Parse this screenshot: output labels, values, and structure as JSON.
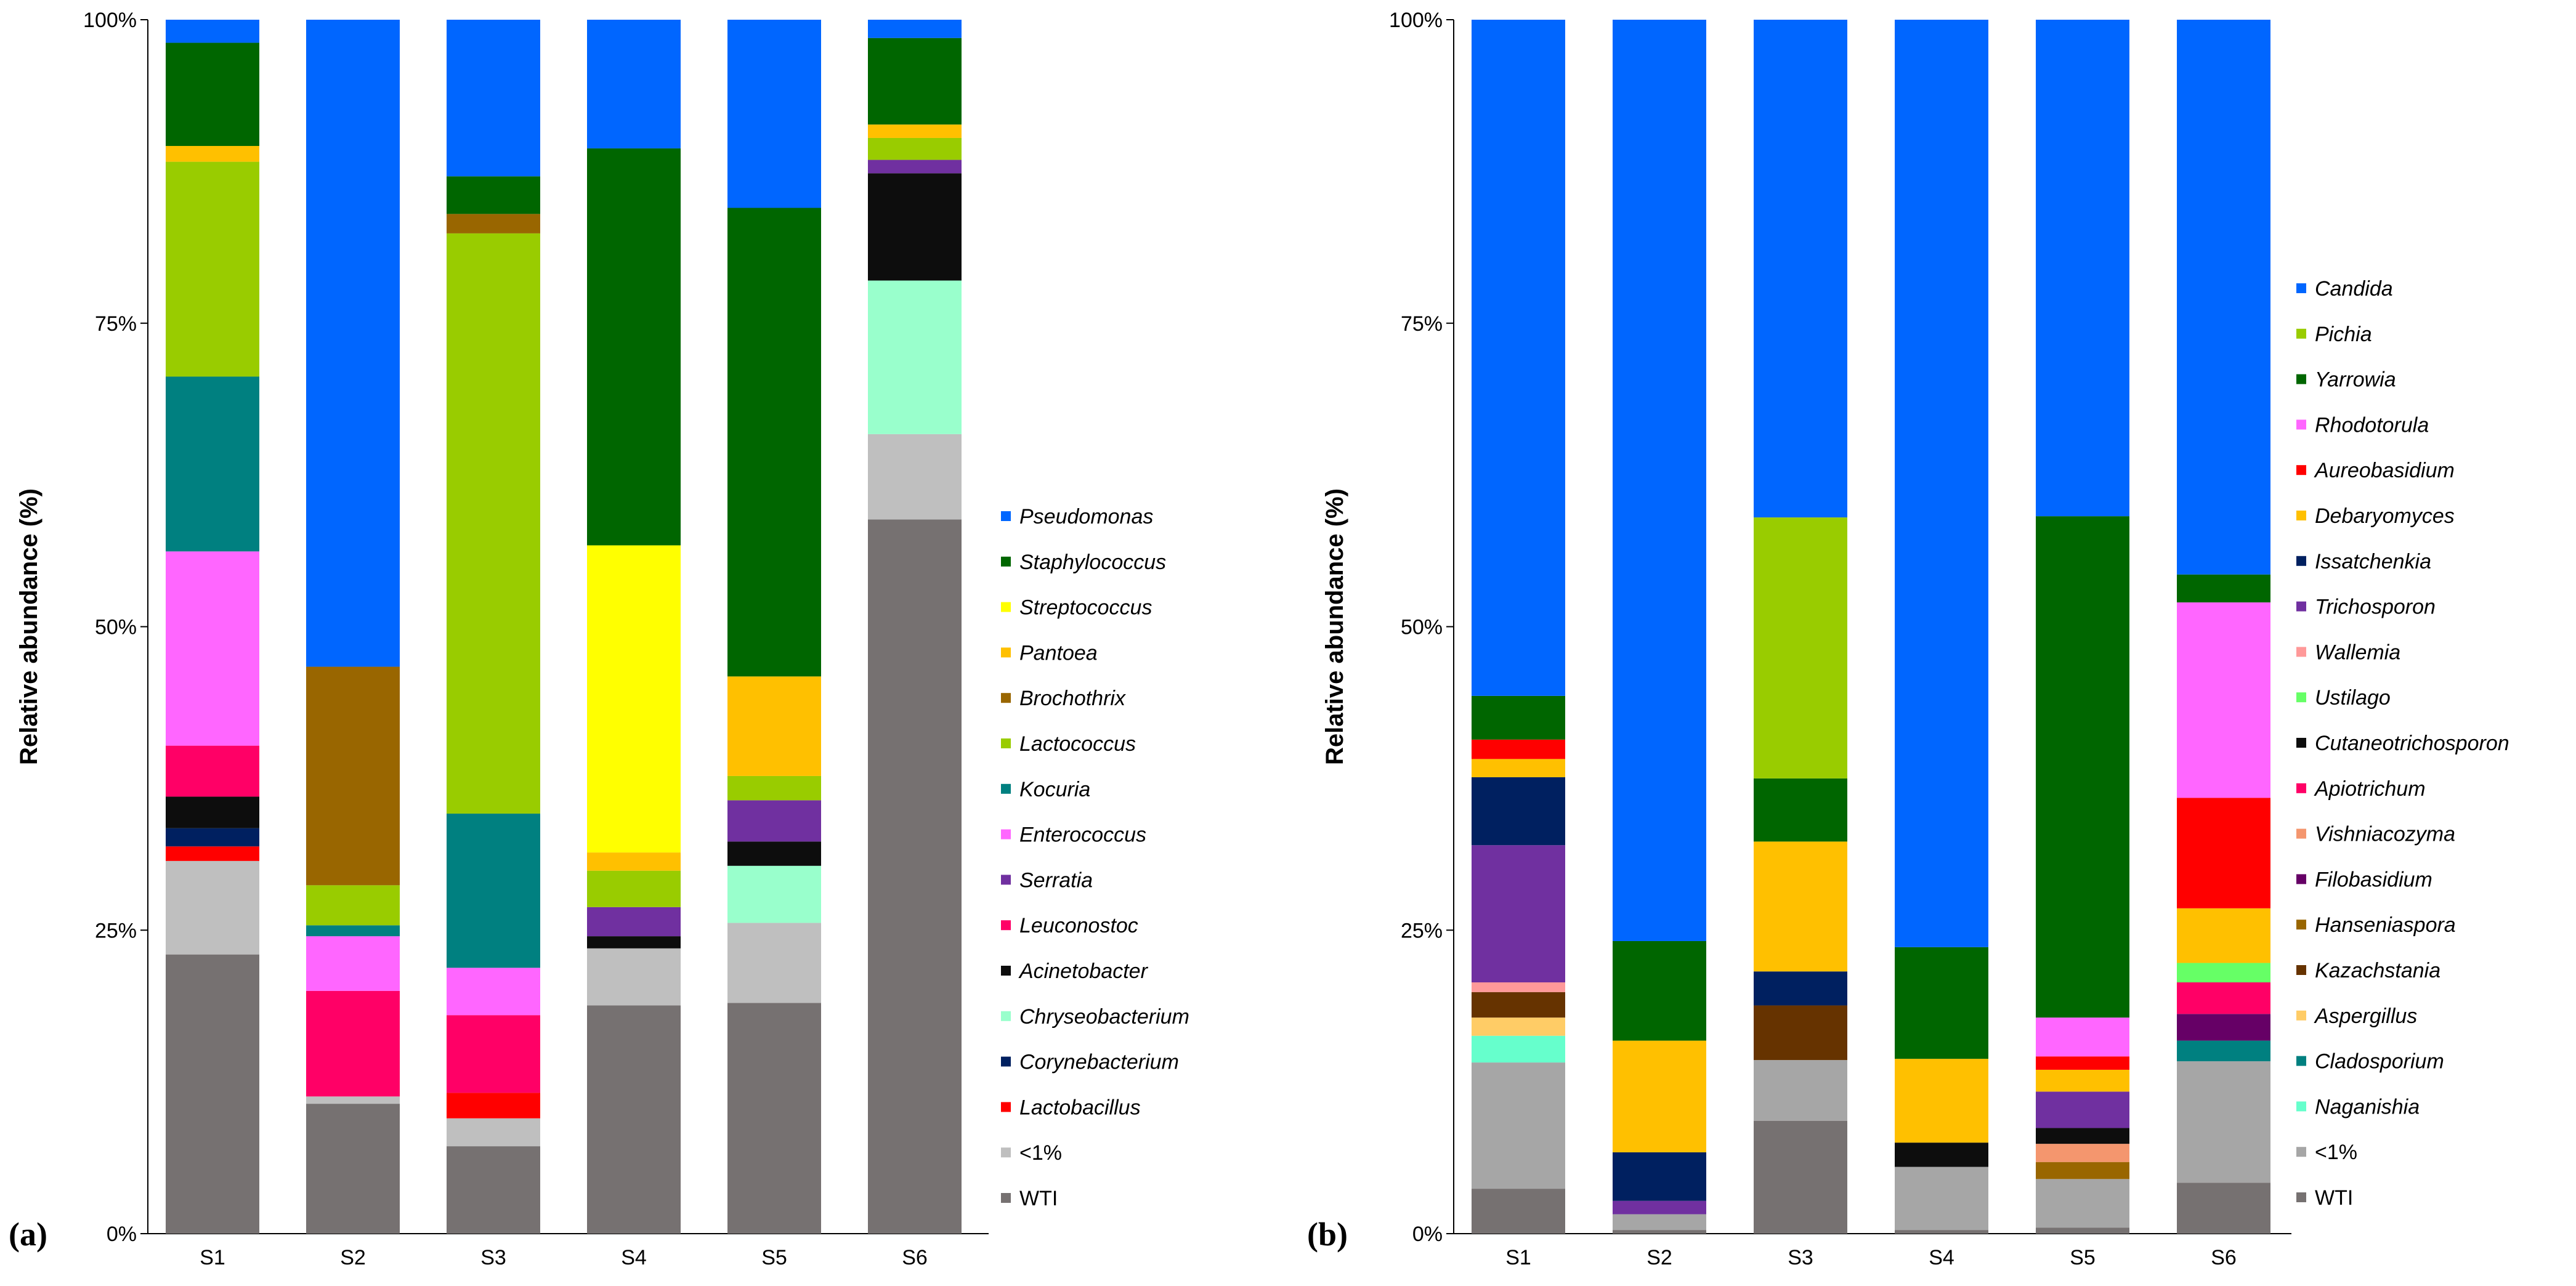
{
  "chart_data": [
    {
      "type": "bar",
      "stacked": true,
      "normalized": true,
      "panel_label": "(a)",
      "ylabel": "Relative abundance (%)",
      "ylim": [
        0,
        100
      ],
      "yticks": [
        0,
        25,
        50,
        75,
        100
      ],
      "ytick_labels": [
        "0%",
        "25%",
        "50%",
        "75%",
        "100%"
      ],
      "legend_position": "right",
      "categories": [
        "S1",
        "S2",
        "S3",
        "S4",
        "S5",
        "S6"
      ],
      "series": [
        {
          "name": "WTI",
          "italic": false,
          "color": "#767171",
          "values": [
            23,
            10.7,
            7.2,
            18.8,
            19,
            58.6
          ]
        },
        {
          "name": "<1%",
          "italic": false,
          "color": "#BFBFBF",
          "values": [
            7.7,
            0.6,
            2.3,
            4.7,
            6.6,
            7
          ]
        },
        {
          "name": "Lactobacillus",
          "italic": true,
          "color": "#FF0000",
          "values": [
            1.2,
            0,
            2.1,
            0,
            0,
            0
          ]
        },
        {
          "name": "Corynebacterium",
          "italic": true,
          "color": "#002060",
          "values": [
            1.5,
            0,
            0,
            0,
            0,
            0
          ]
        },
        {
          "name": "Chryseobacterium",
          "italic": true,
          "color": "#99FFCC",
          "values": [
            0,
            0,
            0,
            0,
            4.7,
            12.6
          ]
        },
        {
          "name": "Acinetobacter",
          "italic": true,
          "color": "#0D0D0D",
          "values": [
            2.6,
            0,
            0,
            1,
            2,
            8.8
          ]
        },
        {
          "name": "Leuconostoc",
          "italic": true,
          "color": "#FF0066",
          "values": [
            4.2,
            8.7,
            6.4,
            0,
            0,
            0
          ]
        },
        {
          "name": "Serratia",
          "italic": true,
          "color": "#7030A0",
          "values": [
            0,
            0,
            0,
            2.4,
            3.4,
            1.1
          ]
        },
        {
          "name": "Enterococcus",
          "italic": true,
          "color": "#FF66FF",
          "values": [
            16,
            4.5,
            3.9,
            0,
            0,
            0
          ]
        },
        {
          "name": "Kocuria",
          "italic": true,
          "color": "#008080",
          "values": [
            14.4,
            0.9,
            12.7,
            0,
            0,
            0
          ]
        },
        {
          "name": "Lactococcus",
          "italic": true,
          "color": "#99CC00",
          "values": [
            17.7,
            3.3,
            47.8,
            3,
            2,
            1.8
          ]
        },
        {
          "name": "Brochothrix",
          "italic": true,
          "color": "#996600",
          "values": [
            0,
            18,
            1.6,
            0,
            0,
            0
          ]
        },
        {
          "name": "Pantoea",
          "italic": true,
          "color": "#FFC000",
          "values": [
            1.3,
            0,
            0,
            1.5,
            8.2,
            1.1
          ]
        },
        {
          "name": "Streptococcus",
          "italic": true,
          "color": "#FFFF00",
          "values": [
            0,
            0,
            0,
            25.3,
            0,
            0
          ]
        },
        {
          "name": "Staphylococcus",
          "italic": true,
          "color": "#006600",
          "values": [
            8.5,
            0,
            3.1,
            32.7,
            38.6,
            7.1
          ]
        },
        {
          "name": "Pseudomonas",
          "italic": true,
          "color": "#0066FF",
          "values": [
            1.9,
            53.3,
            12.9,
            10.6,
            15.5,
            1.5
          ]
        }
      ]
    },
    {
      "type": "bar",
      "stacked": true,
      "normalized": true,
      "panel_label": "(b)",
      "ylabel": "Relative abundance (%)",
      "ylim": [
        0,
        100
      ],
      "yticks": [
        0,
        25,
        50,
        75,
        100
      ],
      "ytick_labels": [
        "0%",
        "25%",
        "50%",
        "75%",
        "100%"
      ],
      "legend_position": "right",
      "categories": [
        "S1",
        "S2",
        "S3",
        "S4",
        "S5",
        "S6"
      ],
      "series": [
        {
          "name": "WTI",
          "italic": false,
          "color": "#767171",
          "values": [
            3.7,
            0.3,
            9.3,
            0.3,
            0.5,
            4.2
          ]
        },
        {
          "name": "<1%",
          "italic": false,
          "color": "#A6A6A6",
          "values": [
            10.4,
            1.3,
            5,
            5.2,
            4,
            10
          ]
        },
        {
          "name": "Naganishia",
          "italic": true,
          "color": "#66FFCC",
          "values": [
            2.2,
            0,
            0,
            0,
            0,
            0
          ]
        },
        {
          "name": "Cladosporium",
          "italic": true,
          "color": "#008080",
          "values": [
            0,
            0,
            0,
            0,
            0,
            1.7
          ]
        },
        {
          "name": "Aspergillus",
          "italic": true,
          "color": "#FFCC66",
          "values": [
            1.5,
            0,
            0,
            0,
            0,
            0
          ]
        },
        {
          "name": "Kazachstania",
          "italic": true,
          "color": "#663300",
          "values": [
            2.1,
            0,
            4.5,
            0,
            0,
            0
          ]
        },
        {
          "name": "Hanseniaspora",
          "italic": true,
          "color": "#996600",
          "values": [
            0,
            0,
            0,
            0,
            1.4,
            0
          ]
        },
        {
          "name": "Filobasidium",
          "italic": true,
          "color": "#660066",
          "values": [
            0,
            0,
            0,
            0,
            0,
            2.2
          ]
        },
        {
          "name": "Vishniacozyma",
          "italic": true,
          "color": "#F4966E",
          "values": [
            0,
            0,
            0,
            0,
            1.5,
            0
          ]
        },
        {
          "name": "Apiotrichum",
          "italic": true,
          "color": "#FF0066",
          "values": [
            0,
            0,
            0,
            0,
            0,
            2.6
          ]
        },
        {
          "name": "Cutaneotrichosporon",
          "italic": true,
          "color": "#0D0D0D",
          "values": [
            0,
            0,
            0,
            2,
            1.3,
            0
          ]
        },
        {
          "name": "Ustilago",
          "italic": true,
          "color": "#66FF66",
          "values": [
            0,
            0,
            0,
            0,
            0,
            1.6
          ]
        },
        {
          "name": "Wallemia",
          "italic": true,
          "color": "#FF9999",
          "values": [
            0.8,
            0,
            0,
            0,
            0,
            0
          ]
        },
        {
          "name": "Trichosporon",
          "italic": true,
          "color": "#7030A0",
          "values": [
            11.3,
            1.1,
            0,
            0,
            3,
            0
          ]
        },
        {
          "name": "Issatchenkia",
          "italic": true,
          "color": "#002060",
          "values": [
            5.6,
            4,
            2.8,
            0,
            0,
            0
          ]
        },
        {
          "name": "Debaryomyces",
          "italic": true,
          "color": "#FFC000",
          "values": [
            1.5,
            9.2,
            10.7,
            6.9,
            1.8,
            4.5
          ]
        },
        {
          "name": "Aureobasidium",
          "italic": true,
          "color": "#FF0000",
          "values": [
            1.6,
            0,
            0,
            0,
            1.1,
            9.1
          ]
        },
        {
          "name": "Rhodotorula",
          "italic": true,
          "color": "#FF66FF",
          "values": [
            0,
            0,
            0,
            0,
            3.2,
            16.1
          ]
        },
        {
          "name": "Yarrowia",
          "italic": true,
          "color": "#006600",
          "values": [
            3.6,
            8.2,
            5.2,
            9.2,
            41.3,
            2.3
          ]
        },
        {
          "name": "Pichia",
          "italic": true,
          "color": "#99CC00",
          "values": [
            0,
            0,
            21.5,
            0,
            0,
            0
          ]
        },
        {
          "name": "Candida",
          "italic": true,
          "color": "#0066FF",
          "values": [
            55.7,
            75.9,
            41,
            76.4,
            40.9,
            45.7
          ]
        }
      ]
    }
  ]
}
